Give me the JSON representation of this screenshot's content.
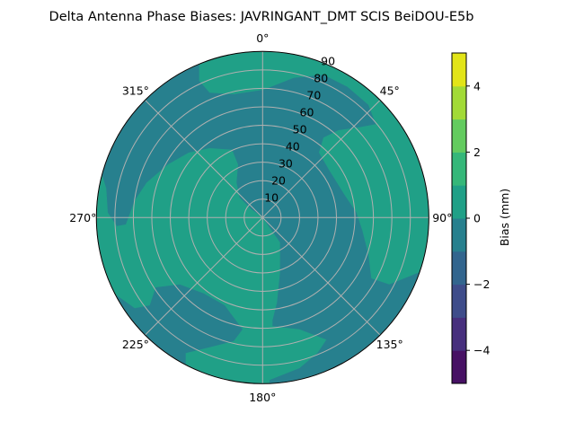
{
  "chart_data": {
    "type": "heatmap",
    "subtype": "polar filled contour",
    "title": "Delta Antenna Phase Biases: JAVRINGANT_DMT  SCIS BeiDOU-E5b",
    "theta_direction": "clockwise",
    "theta_zero": "top",
    "theta_ticks": [
      "0°",
      "45°",
      "90°",
      "135°",
      "180°",
      "225°",
      "270°",
      "315°"
    ],
    "r_ticks": [
      "10",
      "20",
      "30",
      "40",
      "50",
      "60",
      "70",
      "80",
      "90"
    ],
    "r_range": [
      0,
      90
    ],
    "grid": true,
    "levels": [
      -5,
      -4,
      -3,
      -2,
      -1,
      0,
      1,
      2,
      3,
      4,
      5
    ],
    "level_colors": [
      "#471164",
      "#472f7d",
      "#3e4c8a",
      "#32658e",
      "#27808e",
      "#20a087",
      "#35b779",
      "#63cb5f",
      "#a2da37",
      "#e2e418"
    ],
    "regions": [
      {
        "range": [
          0,
          1
        ],
        "description_areas": [
          "rim 0°-90°",
          "west center",
          "south",
          "east"
        ]
      },
      {
        "range": [
          -1,
          0
        ],
        "description_areas": [
          "north-west",
          "north",
          "center to south-east",
          "south-west band"
        ]
      }
    ],
    "colorbar": {
      "label": "Bias (mm)",
      "range": [
        -5,
        5
      ],
      "ticks": [
        "4",
        "2",
        "0",
        "−2",
        "−4"
      ],
      "tick_values": [
        4,
        2,
        0,
        -2,
        -4
      ]
    }
  }
}
